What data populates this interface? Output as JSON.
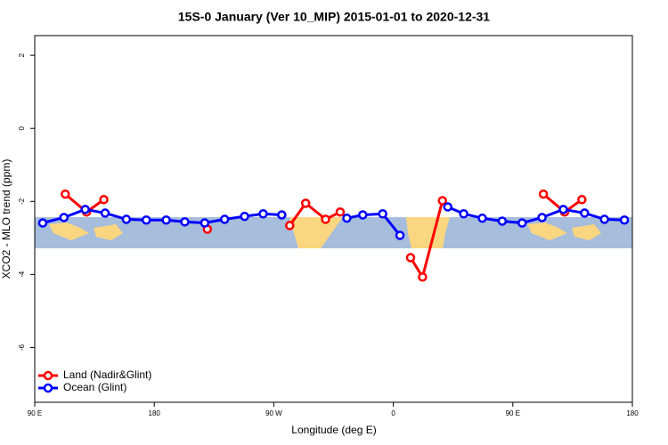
{
  "chart_data": {
    "type": "line",
    "title": "15S-0 January (Ver 10_MIP)   2015-01-01 to 2020-12-31",
    "xlabel": "Longitude (deg E)",
    "ylabel": "XCO2 - MLO trend (ppm)",
    "xlim": [
      90,
      540
    ],
    "ylim": [
      -7.5,
      2.54
    ],
    "xticks": [
      {
        "value": 90,
        "label": "90 E"
      },
      180,
      {
        "value": 270,
        "label": "90 W"
      },
      {
        "value": 360,
        "label": "0"
      },
      {
        "value": 450,
        "label": "90 E"
      },
      {
        "value": 540,
        "label": "180"
      }
    ],
    "yticks": [
      2,
      0,
      -2,
      -4,
      -6
    ],
    "legend": "bottom-left",
    "series": [
      {
        "name": "Land (Nadir&Glint)",
        "color": "#ff0000",
        "x": [
          113,
          129,
          142,
          null,
          220,
          null,
          282,
          294,
          309,
          320,
          null,
          373,
          382,
          397,
          null,
          473,
          489,
          502
        ],
        "values": [
          -1.8,
          -2.29,
          -1.95,
          null,
          -2.76,
          null,
          -2.66,
          -2.05,
          -2.49,
          -2.29,
          null,
          -3.54,
          -4.07,
          -1.98,
          null,
          -1.8,
          -2.29,
          -1.95
        ]
      },
      {
        "name": "Ocean (Glint)",
        "color": "#0000ff",
        "x": [
          96,
          112,
          128,
          143,
          159,
          174,
          189,
          203,
          218,
          233,
          248,
          262,
          276,
          null,
          325,
          337,
          352,
          365,
          null,
          401,
          413,
          427,
          442,
          457,
          472,
          488,
          504,
          519,
          534
        ],
        "values": [
          -2.59,
          -2.44,
          -2.22,
          -2.32,
          -2.49,
          -2.51,
          -2.51,
          -2.56,
          -2.59,
          -2.49,
          -2.41,
          -2.34,
          -2.37,
          null,
          -2.46,
          -2.37,
          -2.34,
          -2.93,
          null,
          -2.15,
          -2.34,
          -2.46,
          -2.54,
          -2.59,
          -2.44,
          -2.22,
          -2.32,
          -2.49,
          -2.51
        ]
      }
    ]
  }
}
